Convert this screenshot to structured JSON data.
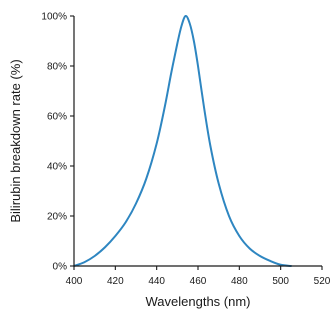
{
  "chart_data": {
    "type": "line",
    "title": "",
    "xlabel": "Wavelengths (nm)",
    "ylabel": "Bilirubin breakdown rate (%)",
    "xlim": [
      400,
      520
    ],
    "ylim": [
      0,
      100
    ],
    "x_ticks": [
      "400",
      "420",
      "440",
      "460",
      "480",
      "500",
      "520"
    ],
    "x_tick_values": [
      400,
      420,
      440,
      460,
      480,
      500,
      520
    ],
    "y_ticks": [
      "0%",
      "20%",
      "40%",
      "60%",
      "80%",
      "100%"
    ],
    "y_tick_values": [
      0,
      20,
      40,
      60,
      80,
      100
    ],
    "grid": false,
    "legend": "none",
    "series": [
      {
        "color": "#2e86c1",
        "x": [
          400,
          405,
          410,
          415,
          420,
          425,
          430,
          435,
          440,
          444,
          447,
          450,
          452,
          454,
          456,
          458,
          460,
          463,
          466,
          470,
          475,
          480,
          485,
          490,
          495,
          500,
          505
        ],
        "y": [
          0,
          1.5,
          4,
          7.5,
          12,
          17.5,
          25,
          35,
          49,
          64,
          77,
          89,
          96,
          100,
          97,
          90,
          80,
          63,
          48,
          33,
          20,
          12,
          7,
          4,
          2,
          0.5,
          0
        ]
      }
    ]
  }
}
